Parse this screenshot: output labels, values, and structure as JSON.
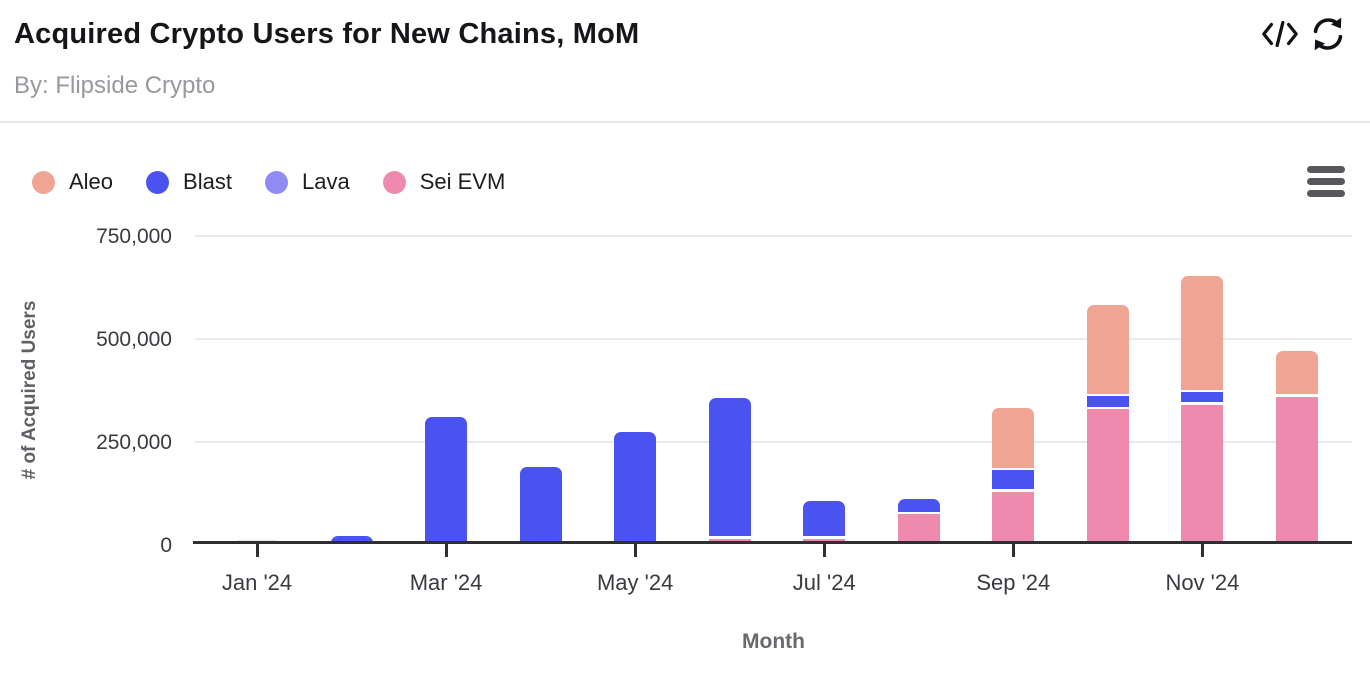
{
  "header": {
    "title": "Acquired Crypto Users for New Chains, MoM",
    "subtitle": "By: Flipside Crypto",
    "icons": [
      "code-icon",
      "refresh-icon"
    ]
  },
  "legend": {
    "position": "top",
    "items": [
      {
        "label": "Aleo",
        "color": "#F0A493"
      },
      {
        "label": "Blast",
        "color": "#4A52F0"
      },
      {
        "label": "Lava",
        "color": "#8F8AF4"
      },
      {
        "label": "Sei EVM",
        "color": "#EE8AAE"
      }
    ]
  },
  "menu": {
    "icon": "hamburger-menu-icon"
  },
  "chart_data": {
    "type": "bar",
    "stacked": true,
    "title": "Acquired Crypto Users for New Chains, MoM",
    "xlabel": "Month",
    "ylabel": "# of Acquired Users",
    "ylim": [
      0,
      750000
    ],
    "yticks": [
      0,
      250000,
      500000,
      750000
    ],
    "ytick_labels": [
      "0",
      "250,000",
      "500,000",
      "750,000"
    ],
    "grid": true,
    "legend_position": "top",
    "categories": [
      "Jan '24",
      "Feb '24",
      "Mar '24",
      "Apr '24",
      "May '24",
      "Jun '24",
      "Jul '24",
      "Aug '24",
      "Sep '24",
      "Oct '24",
      "Nov '24",
      "Dec '24"
    ],
    "x_tick_label_indices": [
      0,
      2,
      4,
      6,
      8,
      10
    ],
    "stack_order_bottom_to_top": [
      "Sei EVM",
      "Blast",
      "Lava",
      "Aleo"
    ],
    "series": [
      {
        "name": "Aleo",
        "color": "#F0A493",
        "values": [
          0,
          0,
          0,
          0,
          0,
          0,
          0,
          0,
          145000,
          215000,
          275000,
          105000
        ]
      },
      {
        "name": "Blast",
        "color": "#4A52F0",
        "values": [
          1000,
          18000,
          305000,
          185000,
          270000,
          335000,
          85000,
          30000,
          45000,
          25000,
          25000,
          0
        ]
      },
      {
        "name": "Lava",
        "color": "#8F8AF4",
        "values": [
          0,
          0,
          0,
          0,
          0,
          0,
          0,
          0,
          0,
          0,
          0,
          0
        ]
      },
      {
        "name": "Sei EVM",
        "color": "#EE8AAE",
        "values": [
          0,
          0,
          0,
          0,
          0,
          10000,
          10000,
          70000,
          125000,
          325000,
          335000,
          355000
        ]
      }
    ]
  },
  "colors": {
    "axis_line": "#2e2e33",
    "grid_line": "#e9e9eb",
    "near_zero_bar": "#e4e4e7",
    "text_primary": "#16161a",
    "text_secondary": "#98989e",
    "axis_text": "#3a3a40",
    "axis_title_text": "#5f5f66"
  }
}
